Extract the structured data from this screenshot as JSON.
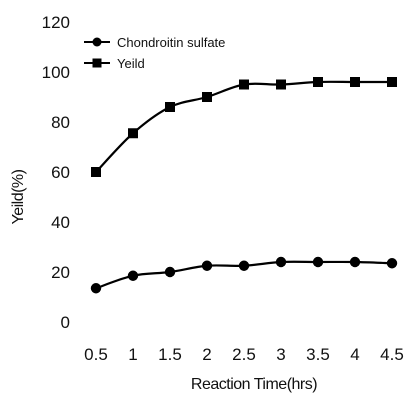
{
  "chart_data": {
    "type": "line",
    "title": "",
    "xlabel": "Reaction Time(hrs)",
    "ylabel": "Yeild(%)",
    "x": [
      0.5,
      1,
      1.5,
      2,
      2.5,
      3,
      3.5,
      4,
      4.5
    ],
    "x_tick_labels": [
      "0.5",
      "1",
      "1.5",
      "2",
      "2.5",
      "3",
      "3.5",
      "4",
      "4.5"
    ],
    "y_ticks": [
      0,
      20,
      40,
      60,
      80,
      100,
      120
    ],
    "ylim": [
      0,
      120
    ],
    "grid": false,
    "legend_position": "top-left",
    "series": [
      {
        "name": "Chondroitin sulfate",
        "marker": "circle",
        "color": "#000000",
        "values": [
          13.5,
          18.5,
          20,
          22.5,
          22.5,
          24,
          24,
          24,
          23.5
        ]
      },
      {
        "name": "Yeild",
        "marker": "square",
        "color": "#000000",
        "values": [
          60,
          75.5,
          86,
          90,
          95,
          95,
          96,
          96,
          96
        ]
      }
    ]
  }
}
